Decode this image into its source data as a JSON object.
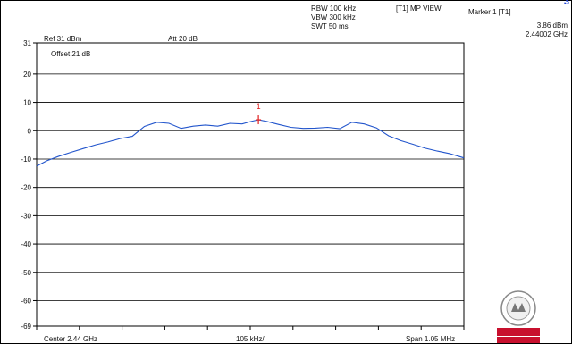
{
  "header": {
    "rbw": "RBW 100 kHz",
    "vbw": "VBW 300 kHz",
    "swt": "SWT 50 ms",
    "mode": "[T1] MP VIEW",
    "ref": "Ref 31 dBm",
    "att": "Att  20 dB",
    "offset": "Offset 21 dB",
    "marker_title": "Marker 1 [T1]",
    "marker_level": "3.86 dBm",
    "marker_freq": "2.44002 GHz",
    "corner_glyph": "3"
  },
  "footer": {
    "center": "Center 2.44 GHz",
    "per_div": "105 kHz/",
    "span": "Span 1.05 MHz"
  },
  "logo": {
    "name": "bureau-veritas-logo",
    "text_top": "BUREAU",
    "text_bottom": "VERITAS",
    "year": "1828",
    "color": "#c8102e"
  },
  "chart_data": {
    "type": "line",
    "title": "",
    "xlabel": "",
    "ylabel": "",
    "ylim": [
      -69,
      31
    ],
    "yticks": [
      31,
      20,
      10,
      0,
      -10,
      -20,
      -30,
      -40,
      -50,
      -60,
      -69
    ],
    "xlim": [
      2.439475,
      2.440525
    ],
    "grid": true,
    "trace_color": "#2255cc",
    "marker": {
      "label": "1",
      "x_ghz": 2.44002,
      "y_dbm": 3.86,
      "color": "#e02020"
    },
    "series": [
      {
        "x_ghz": [
          2.439475,
          2.4395,
          2.43953,
          2.43956,
          2.43959,
          2.43962,
          2.43965,
          2.43968,
          2.43971,
          2.43974,
          2.43977,
          2.4398,
          2.43983,
          2.43986,
          2.43989,
          2.43992,
          2.43995,
          2.43998,
          2.44,
          2.44002,
          2.44004,
          2.44007,
          2.4401,
          2.44013,
          2.44016,
          2.44019,
          2.44022,
          2.44025,
          2.44028,
          2.44031,
          2.44034,
          2.44037,
          2.4404,
          2.44043,
          2.44046,
          2.44049,
          2.440525
        ],
        "y_dbm": [
          -12.5,
          -10.6,
          -9.0,
          -7.6,
          -6.3,
          -5.0,
          -4.0,
          -2.8,
          -2.0,
          1.5,
          3.0,
          2.6,
          0.8,
          1.6,
          2.0,
          1.6,
          2.6,
          2.4,
          3.2,
          3.86,
          3.3,
          2.2,
          1.2,
          0.8,
          0.9,
          1.2,
          0.7,
          3.0,
          2.4,
          1.0,
          -1.8,
          -3.5,
          -4.8,
          -6.2,
          -7.2,
          -8.1,
          -9.6
        ]
      }
    ]
  }
}
